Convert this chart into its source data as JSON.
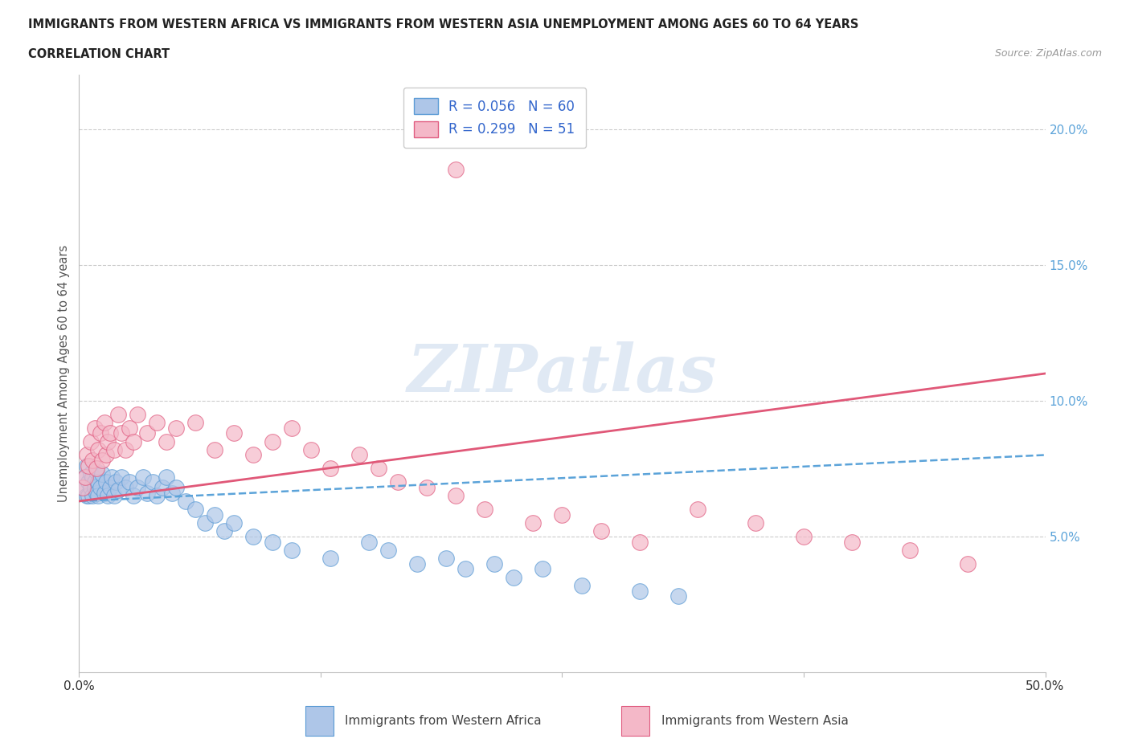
{
  "title_line1": "IMMIGRANTS FROM WESTERN AFRICA VS IMMIGRANTS FROM WESTERN ASIA UNEMPLOYMENT AMONG AGES 60 TO 64 YEARS",
  "title_line2": "CORRELATION CHART",
  "source": "Source: ZipAtlas.com",
  "ylabel": "Unemployment Among Ages 60 to 64 years",
  "xlim": [
    0.0,
    0.5
  ],
  "ylim": [
    0.0,
    0.22
  ],
  "series1_color": "#aec6e8",
  "series1_edge": "#5b9bd5",
  "series2_color": "#f4b8c8",
  "series2_edge": "#e05c80",
  "trend1_color": "#5ba3d9",
  "trend2_color": "#e05878",
  "legend_text_color": "#3366cc",
  "ytick_color": "#5ba3d9",
  "R1": 0.056,
  "N1": 60,
  "R2": 0.299,
  "N2": 51,
  "label1": "Immigrants from Western Africa",
  "label2": "Immigrants from Western Asia",
  "watermark": "ZIPatlas",
  "background_color": "#ffffff",
  "grid_color": "#cccccc",
  "trend1_x0": 0.0,
  "trend1_y0": 0.063,
  "trend1_x1": 0.5,
  "trend1_y1": 0.08,
  "trend2_x0": 0.0,
  "trend2_y0": 0.063,
  "trend2_x1": 0.5,
  "trend2_y1": 0.11,
  "series1_x": [
    0.002,
    0.003,
    0.004,
    0.004,
    0.005,
    0.005,
    0.006,
    0.006,
    0.007,
    0.007,
    0.008,
    0.008,
    0.009,
    0.009,
    0.01,
    0.01,
    0.011,
    0.012,
    0.013,
    0.014,
    0.015,
    0.016,
    0.017,
    0.018,
    0.019,
    0.02,
    0.022,
    0.024,
    0.026,
    0.028,
    0.03,
    0.033,
    0.035,
    0.038,
    0.04,
    0.043,
    0.045,
    0.048,
    0.05,
    0.055,
    0.06,
    0.065,
    0.07,
    0.075,
    0.08,
    0.09,
    0.1,
    0.11,
    0.13,
    0.15,
    0.16,
    0.175,
    0.19,
    0.2,
    0.215,
    0.225,
    0.24,
    0.26,
    0.29,
    0.31
  ],
  "series1_y": [
    0.068,
    0.072,
    0.065,
    0.076,
    0.07,
    0.065,
    0.073,
    0.068,
    0.072,
    0.065,
    0.07,
    0.068,
    0.074,
    0.066,
    0.07,
    0.065,
    0.068,
    0.073,
    0.066,
    0.07,
    0.065,
    0.068,
    0.072,
    0.065,
    0.07,
    0.067,
    0.072,
    0.068,
    0.07,
    0.065,
    0.068,
    0.072,
    0.066,
    0.07,
    0.065,
    0.068,
    0.072,
    0.066,
    0.068,
    0.063,
    0.06,
    0.055,
    0.058,
    0.052,
    0.055,
    0.05,
    0.048,
    0.045,
    0.042,
    0.048,
    0.045,
    0.04,
    0.042,
    0.038,
    0.04,
    0.035,
    0.038,
    0.032,
    0.03,
    0.028
  ],
  "series2_x": [
    0.002,
    0.003,
    0.004,
    0.005,
    0.006,
    0.007,
    0.008,
    0.009,
    0.01,
    0.011,
    0.012,
    0.013,
    0.014,
    0.015,
    0.016,
    0.018,
    0.02,
    0.022,
    0.024,
    0.026,
    0.028,
    0.03,
    0.035,
    0.04,
    0.045,
    0.05,
    0.06,
    0.07,
    0.08,
    0.09,
    0.1,
    0.11,
    0.12,
    0.13,
    0.145,
    0.155,
    0.165,
    0.18,
    0.195,
    0.21,
    0.235,
    0.25,
    0.27,
    0.29,
    0.32,
    0.35,
    0.375,
    0.4,
    0.43,
    0.46,
    0.195
  ],
  "series2_y": [
    0.068,
    0.072,
    0.08,
    0.076,
    0.085,
    0.078,
    0.09,
    0.075,
    0.082,
    0.088,
    0.078,
    0.092,
    0.08,
    0.085,
    0.088,
    0.082,
    0.095,
    0.088,
    0.082,
    0.09,
    0.085,
    0.095,
    0.088,
    0.092,
    0.085,
    0.09,
    0.092,
    0.082,
    0.088,
    0.08,
    0.085,
    0.09,
    0.082,
    0.075,
    0.08,
    0.075,
    0.07,
    0.068,
    0.065,
    0.06,
    0.055,
    0.058,
    0.052,
    0.048,
    0.06,
    0.055,
    0.05,
    0.048,
    0.045,
    0.04,
    0.185
  ]
}
